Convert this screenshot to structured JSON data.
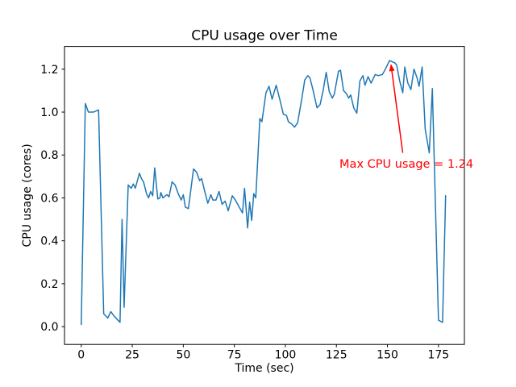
{
  "figure": {
    "background": "#ffffff"
  },
  "chart_data": {
    "type": "line",
    "title": "CPU usage over Time",
    "xlabel": "Time (sec)",
    "ylabel": "CPU usage (cores)",
    "line_color": "#1f77b4",
    "line_width": 1.5,
    "grid": false,
    "legend": null,
    "xlim": [
      -8.2,
      187.7
    ],
    "ylim": [
      -0.083,
      1.306
    ],
    "xticks": {
      "values": [
        0,
        25,
        50,
        75,
        100,
        125,
        150,
        175
      ],
      "labels": [
        "0",
        "25",
        "50",
        "75",
        "100",
        "125",
        "150",
        "175"
      ]
    },
    "yticks": {
      "values": [
        0.0,
        0.2,
        0.4,
        0.6,
        0.8,
        1.0,
        1.2
      ],
      "labels": [
        "0.0",
        "0.2",
        "0.4",
        "0.6",
        "0.8",
        "1.0",
        "1.2"
      ]
    },
    "x": [
      0,
      2,
      3.5,
      6,
      8.5,
      11,
      13,
      14.5,
      16,
      17.5,
      19,
      20,
      21,
      23,
      24.5,
      25.5,
      26.5,
      28.5,
      29.5,
      30.5,
      32,
      33,
      34,
      35,
      36,
      37.5,
      38.5,
      39,
      40,
      42,
      43,
      44.5,
      46,
      47.5,
      49,
      50,
      51,
      52.5,
      55,
      56.5,
      58,
      59,
      60.5,
      62,
      63.5,
      64.5,
      66,
      67.5,
      69,
      70.5,
      72,
      74,
      75.5,
      77.5,
      79,
      80,
      81.5,
      82.5,
      83.5,
      84.5,
      85.5,
      87.5,
      88.5,
      90.5,
      92,
      93.5,
      95.5,
      97.5,
      99,
      100.5,
      101.5,
      103,
      104.5,
      106,
      108,
      109.5,
      111,
      112,
      113.5,
      115.5,
      117,
      118.5,
      120,
      121.5,
      123,
      124,
      126,
      127,
      128.5,
      130,
      131,
      132,
      133.5,
      135,
      136.5,
      138,
      139,
      140.5,
      142,
      144,
      145.5,
      147.5,
      149,
      151,
      153.5,
      154.5,
      156,
      157.5,
      158.5,
      160,
      161.5,
      163,
      164.5,
      165.5,
      167,
      168.5,
      170.5,
      172,
      175,
      177,
      178.5
    ],
    "y": [
      0.01,
      1.04,
      1.0,
      1.0,
      1.01,
      0.06,
      0.04,
      0.07,
      0.05,
      0.035,
      0.02,
      0.5,
      0.09,
      0.66,
      0.645,
      0.665,
      0.645,
      0.715,
      0.69,
      0.675,
      0.62,
      0.6,
      0.63,
      0.61,
      0.74,
      0.595,
      0.6,
      0.625,
      0.6,
      0.615,
      0.605,
      0.675,
      0.66,
      0.62,
      0.59,
      0.615,
      0.557,
      0.55,
      0.735,
      0.72,
      0.68,
      0.69,
      0.63,
      0.575,
      0.615,
      0.59,
      0.59,
      0.63,
      0.57,
      0.585,
      0.54,
      0.61,
      0.59,
      0.555,
      0.53,
      0.645,
      0.46,
      0.58,
      0.495,
      0.62,
      0.6,
      0.97,
      0.955,
      1.09,
      1.12,
      1.06,
      1.125,
      1.05,
      0.99,
      0.985,
      0.955,
      0.945,
      0.93,
      0.95,
      1.06,
      1.15,
      1.17,
      1.16,
      1.105,
      1.02,
      1.035,
      1.1,
      1.185,
      1.095,
      1.065,
      1.085,
      1.19,
      1.195,
      1.1,
      1.085,
      1.065,
      1.08,
      1.02,
      0.995,
      1.145,
      1.17,
      1.125,
      1.165,
      1.135,
      1.175,
      1.17,
      1.175,
      1.2,
      1.24,
      1.23,
      1.22,
      1.145,
      1.09,
      1.21,
      1.135,
      1.105,
      1.2,
      1.16,
      1.12,
      1.21,
      0.92,
      0.81,
      1.11,
      0.03,
      0.02,
      0.61
    ],
    "max_value": 1.24,
    "annotation": {
      "text": "Max CPU usage = 1.24",
      "color": "#ff0000",
      "text_pos": {
        "x": 126.5,
        "y": 0.74
      },
      "arrow_start": {
        "x": 157.5,
        "y": 0.81
      },
      "arrow_end": {
        "x": 151.7,
        "y": 1.225
      }
    }
  }
}
